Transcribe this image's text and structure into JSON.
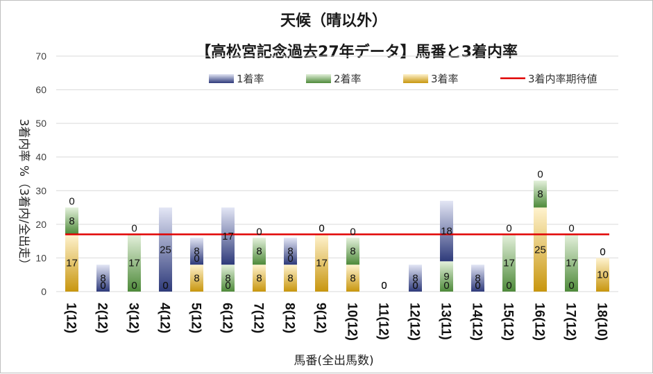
{
  "chart_data": {
    "type": "bar",
    "title": "天候（晴以外）",
    "subtitle": "【高松宮記念過去27年データ】馬番と3着内率",
    "xlabel": "馬番(全出馬数)",
    "ylabel": "3着内率 %（3着内/全出走）",
    "ylim": [
      0,
      70
    ],
    "yticks": [
      "0",
      "10",
      "20",
      "30",
      "40",
      "50",
      "60",
      "70"
    ],
    "categories": [
      "1(12)",
      "2(12)",
      "3(12)",
      "4(12)",
      "5(12)",
      "6(12)",
      "7(12)",
      "8(12)",
      "9(12)",
      "10(12)",
      "11(12)",
      "12(12)",
      "13(11)",
      "14(12)",
      "15(12)",
      "16(12)",
      "17(12)",
      "18(10)"
    ],
    "series": [
      {
        "name": "1着率",
        "color": "#2e3a7a",
        "values": [
          0,
          8,
          0,
          25,
          8,
          17,
          0,
          8,
          0,
          0,
          0,
          8,
          18,
          8,
          0,
          0,
          0,
          0
        ]
      },
      {
        "name": "2着率",
        "color": "#4e8a3a",
        "values": [
          8,
          0,
          17,
          0,
          0,
          8,
          8,
          0,
          0,
          8,
          0,
          0,
          9,
          0,
          17,
          8,
          17,
          0
        ]
      },
      {
        "name": "3着率",
        "color": "#c8960e",
        "values": [
          17,
          0,
          0,
          0,
          8,
          0,
          8,
          8,
          17,
          8,
          0,
          0,
          0,
          0,
          0,
          25,
          0,
          10
        ]
      }
    ],
    "stacked": true,
    "data_labels": true,
    "reference_line": {
      "name": "3着内率期待値",
      "value": 17,
      "color": "#e00000"
    },
    "legend_position": "top",
    "grid": true
  }
}
